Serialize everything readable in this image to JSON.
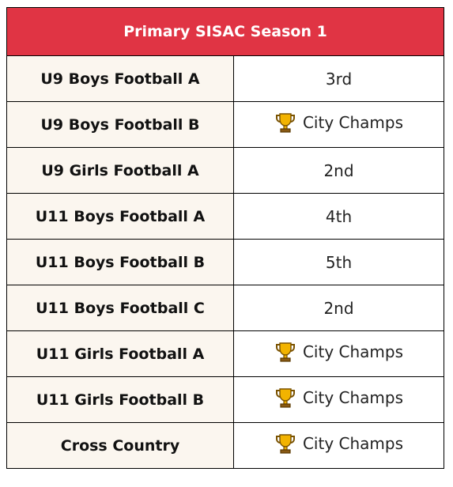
{
  "table": {
    "title": "Primary SISAC Season 1",
    "rows": [
      {
        "team": "U9 Boys Football A",
        "result": "3rd",
        "trophy": false
      },
      {
        "team": "U9 Boys Football B",
        "result": "City Champs",
        "trophy": true
      },
      {
        "team": "U9 Girls Football A",
        "result": "2nd",
        "trophy": false
      },
      {
        "team": "U11 Boys Football A",
        "result": "4th",
        "trophy": false
      },
      {
        "team": "U11 Boys Football B",
        "result": "5th",
        "trophy": false
      },
      {
        "team": "U11 Boys Football C",
        "result": "2nd",
        "trophy": false
      },
      {
        "team": "U11 Girls Football A",
        "result": "City Champs",
        "trophy": true
      },
      {
        "team": "U11 Girls Football B",
        "result": "City Champs",
        "trophy": true
      },
      {
        "team": "Cross Country",
        "result": "City Champs",
        "trophy": true
      }
    ]
  },
  "icons": {
    "trophy": "trophy-icon"
  },
  "colors": {
    "header_bg": "#e03444",
    "team_cell_bg": "#fbf6ef",
    "trophy_gold": "#f2b300"
  }
}
